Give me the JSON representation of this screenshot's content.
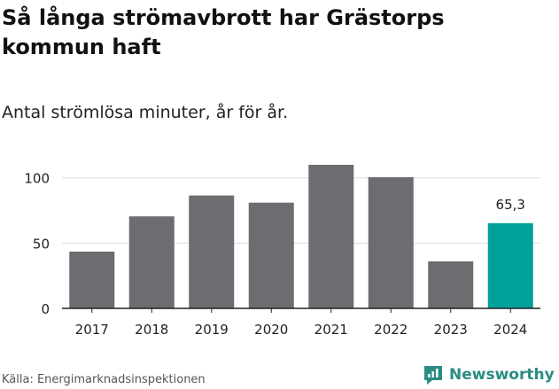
{
  "header": {
    "title": "Så långa strömavbrott har Grästorps kommun haft",
    "subtitle": "Antal strömlösa minuter, år för år."
  },
  "footer": {
    "source": "Källa: Energimarknadsinspektionen",
    "brand": "Newsworthy",
    "brand_icon": "newsworthy-logo-icon"
  },
  "colors": {
    "bar": "#6d6c71",
    "highlight": "#00a19a",
    "axis": "#222222",
    "grid": "#dddddd",
    "brand": "#2a8c83"
  },
  "chart_data": {
    "type": "bar",
    "title": "Så långa strömavbrott har Grästorps kommun haft",
    "subtitle": "Antal strömlösa minuter, år för år.",
    "xlabel": "",
    "ylabel": "",
    "categories": [
      "2017",
      "2018",
      "2019",
      "2020",
      "2021",
      "2022",
      "2023",
      "2024"
    ],
    "values": [
      43.5,
      70.5,
      86.5,
      81,
      110,
      100.5,
      36,
      65.3
    ],
    "highlight_index": 7,
    "data_labels": {
      "7": "65,3"
    },
    "ylim": [
      0,
      110
    ],
    "yticks": [
      0,
      50,
      100
    ],
    "grid": true,
    "legend": "none"
  }
}
